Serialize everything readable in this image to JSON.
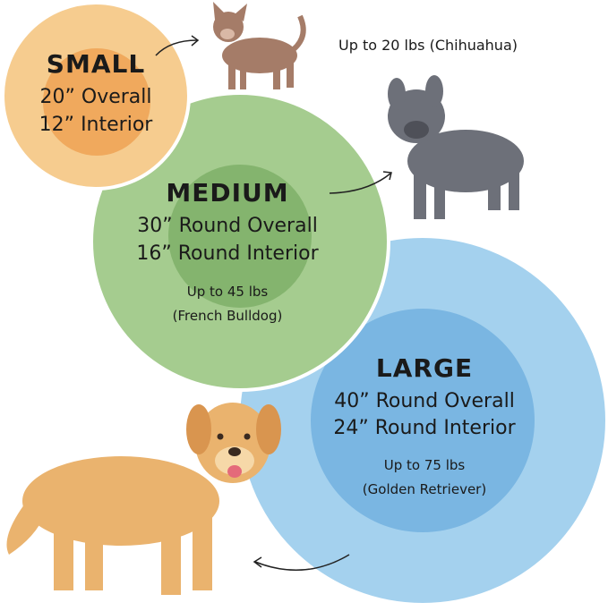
{
  "colors": {
    "small_outer": "#f6cc8f",
    "small_inner": "#f0a95d",
    "medium_outer": "#a5cc8f",
    "medium_inner": "#84b46e",
    "large_outer": "#a4d1ee",
    "large_inner": "#7ab6e2"
  },
  "small": {
    "title": "SMALL",
    "overall": "20” Overall",
    "interior": "12” Interior",
    "weight": "Up to 20 lbs (Chihuahua)"
  },
  "medium": {
    "title": "MEDIUM",
    "overall": "30” Round Overall",
    "interior": "16” Round Interior",
    "weight": "Up to 45 lbs",
    "breed": "(French Bulldog)"
  },
  "large": {
    "title": "LARGE",
    "overall": "40” Round Overall",
    "interior": "24” Round Interior",
    "weight": "Up to 75 lbs",
    "breed": "(Golden Retriever)"
  }
}
